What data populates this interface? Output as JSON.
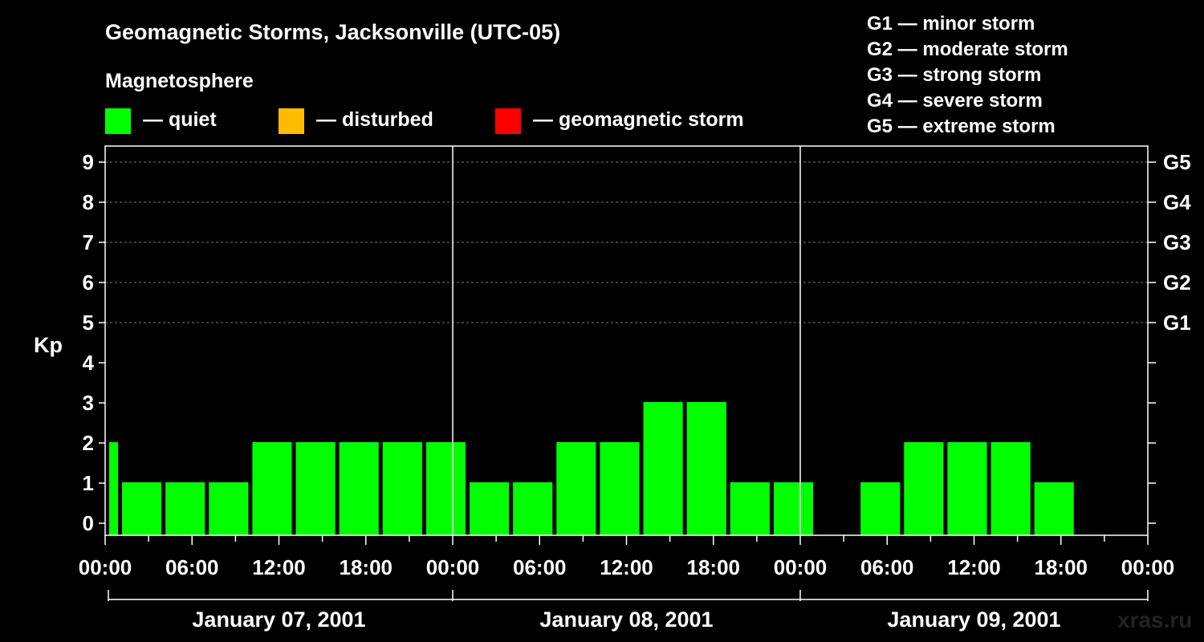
{
  "header": {
    "title": "Geomagnetic Storms, Jacksonville (UTC-05)",
    "section_label": "Magnetosphere",
    "watermark": "xras.ru"
  },
  "legend": {
    "items": [
      {
        "label": "— quiet",
        "color": "#00ff00"
      },
      {
        "label": "— disturbed",
        "color": "#ffbb00"
      },
      {
        "label": "— geomagnetic storm",
        "color": "#ff0000"
      }
    ],
    "g_scale": [
      "G1 — minor storm",
      "G2 — moderate storm",
      "G3 — strong storm",
      "G4 — severe storm",
      "G5 — extreme storm"
    ]
  },
  "chart_data": {
    "type": "bar",
    "title": "Geomagnetic Storms, Jacksonville (UTC-05)",
    "ylabel": "Kp",
    "ylim": [
      0,
      9
    ],
    "yticks": [
      "0",
      "1",
      "2",
      "3",
      "4",
      "5",
      "6",
      "7",
      "8",
      "9"
    ],
    "right_ticks": [
      {
        "kp": 5,
        "label": "G1"
      },
      {
        "kp": 6,
        "label": "G2"
      },
      {
        "kp": 7,
        "label": "G3"
      },
      {
        "kp": 8,
        "label": "G4"
      },
      {
        "kp": 9,
        "label": "G5"
      }
    ],
    "xlim_hours": [
      0,
      72
    ],
    "xticks": [
      "00:00",
      "06:00",
      "12:00",
      "18:00",
      "00:00",
      "06:00",
      "12:00",
      "18:00",
      "00:00",
      "06:00",
      "12:00",
      "18:00",
      "00:00"
    ],
    "days": [
      "January 07, 2001",
      "January 08, 2001",
      "January 09, 2001"
    ],
    "grid": "dashed horizontal at Kp 5-9",
    "bars": [
      {
        "start_hour": 0,
        "end_hour": 1,
        "kp": 2,
        "level": "quiet"
      },
      {
        "start_hour": 1,
        "end_hour": 4,
        "kp": 1,
        "level": "quiet"
      },
      {
        "start_hour": 4,
        "end_hour": 7,
        "kp": 1,
        "level": "quiet"
      },
      {
        "start_hour": 7,
        "end_hour": 10,
        "kp": 1,
        "level": "quiet"
      },
      {
        "start_hour": 10,
        "end_hour": 13,
        "kp": 2,
        "level": "quiet"
      },
      {
        "start_hour": 13,
        "end_hour": 16,
        "kp": 2,
        "level": "quiet"
      },
      {
        "start_hour": 16,
        "end_hour": 19,
        "kp": 2,
        "level": "quiet"
      },
      {
        "start_hour": 19,
        "end_hour": 22,
        "kp": 2,
        "level": "quiet"
      },
      {
        "start_hour": 22,
        "end_hour": 25,
        "kp": 2,
        "level": "quiet"
      },
      {
        "start_hour": 25,
        "end_hour": 28,
        "kp": 1,
        "level": "quiet"
      },
      {
        "start_hour": 28,
        "end_hour": 31,
        "kp": 1,
        "level": "quiet"
      },
      {
        "start_hour": 31,
        "end_hour": 34,
        "kp": 2,
        "level": "quiet"
      },
      {
        "start_hour": 34,
        "end_hour": 37,
        "kp": 2,
        "level": "quiet"
      },
      {
        "start_hour": 37,
        "end_hour": 40,
        "kp": 3,
        "level": "quiet"
      },
      {
        "start_hour": 40,
        "end_hour": 43,
        "kp": 3,
        "level": "quiet"
      },
      {
        "start_hour": 43,
        "end_hour": 46,
        "kp": 1,
        "level": "quiet"
      },
      {
        "start_hour": 46,
        "end_hour": 49,
        "kp": 1,
        "level": "quiet"
      },
      {
        "start_hour": 52,
        "end_hour": 55,
        "kp": 1,
        "level": "quiet"
      },
      {
        "start_hour": 55,
        "end_hour": 58,
        "kp": 2,
        "level": "quiet"
      },
      {
        "start_hour": 58,
        "end_hour": 61,
        "kp": 2,
        "level": "quiet"
      },
      {
        "start_hour": 61,
        "end_hour": 64,
        "kp": 2,
        "level": "quiet"
      },
      {
        "start_hour": 64,
        "end_hour": 67,
        "kp": 1,
        "level": "quiet"
      }
    ]
  }
}
